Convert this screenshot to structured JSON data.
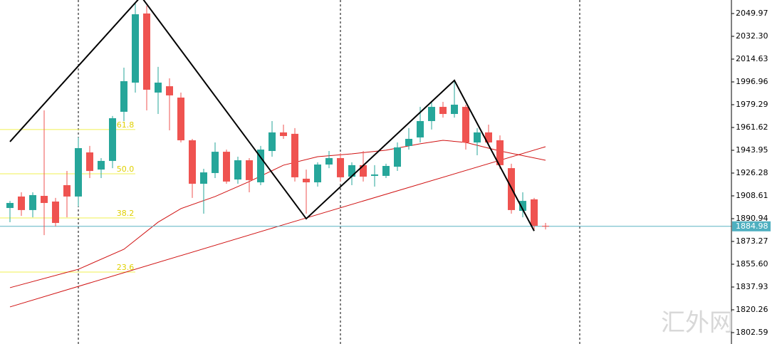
{
  "chart_data": {
    "type": "candlestick",
    "open": [
      1899.2,
      1908.1,
      1897.6,
      1908.6,
      1904.2,
      1916.9,
      1908.1,
      1942.3,
      1929.0,
      1935.7,
      1973.8,
      1996.4,
      2050.0,
      1988.7,
      1993.6,
      1984.8,
      1951.7,
      1918.0,
      1926.3,
      1942.8,
      1921.3,
      1936.2,
      1919.1,
      1943.4,
      1957.8,
      1956.7,
      1921.9,
      1919.1,
      1932.9,
      1937.9,
      1923.5,
      1932.4,
      1924.1,
      1924.1,
      1931.2,
      1947.3,
      1953.9,
      1966.6,
      1977.6,
      1972.1,
      1977.6,
      1950.0,
      1957.8,
      1951.7,
      1930.1,
      1897.0,
      1905.9,
      1885.4
    ],
    "high": [
      1904.7,
      1911.4,
      1911.4,
      1974.9,
      1907.0,
      1927.9,
      1953.9,
      1947.3,
      1937.9,
      1970.5,
      2008.0,
      2057.7,
      2056.0,
      2008.6,
      1999.7,
      1988.7,
      1952.8,
      1929.6,
      1950.0,
      1944.5,
      1939.0,
      1937.9,
      1947.3,
      1966.6,
      1963.8,
      1961.1,
      1929.0,
      1934.6,
      1943.4,
      1941.7,
      1934.6,
      1943.4,
      1932.4,
      1933.5,
      1950.0,
      1961.1,
      1977.6,
      1981.5,
      1981.5,
      1997.0,
      1979.3,
      1961.1,
      1963.8,
      1955.5,
      1933.5,
      1911.4,
      1907.0,
      1887.6
    ],
    "low": [
      1888.2,
      1893.1,
      1892.0,
      1878.2,
      1884.9,
      1892.0,
      1900.3,
      1922.4,
      1922.4,
      1930.1,
      1966.6,
      1988.7,
      1974.9,
      1972.1,
      1959.4,
      1950.0,
      1907.0,
      1894.8,
      1922.4,
      1918.0,
      1918.0,
      1911.4,
      1916.9,
      1939.0,
      1952.8,
      1919.7,
      1894.8,
      1915.8,
      1930.1,
      1919.7,
      1916.9,
      1919.7,
      1915.8,
      1922.4,
      1927.9,
      1944.5,
      1950.0,
      1960.0,
      1969.3,
      1969.3,
      1944.5,
      1940.1,
      1947.3,
      1929.6,
      1894.8,
      1892.0,
      1882.6,
      1882.6
    ],
    "close": [
      1903.1,
      1897.6,
      1909.2,
      1903.1,
      1887.6,
      1908.1,
      1945.6,
      1927.9,
      1935.7,
      1968.8,
      1997.5,
      2049.4,
      1990.9,
      1996.4,
      1986.5,
      1951.7,
      1918.0,
      1926.8,
      1942.8,
      1919.7,
      1936.2,
      1920.8,
      1944.5,
      1957.8,
      1955.0,
      1923.0,
      1919.1,
      1932.9,
      1937.9,
      1923.0,
      1932.4,
      1923.5,
      1925.2,
      1931.8,
      1946.2,
      1952.8,
      1966.6,
      1977.6,
      1972.1,
      1979.3,
      1950.0,
      1957.8,
      1950.0,
      1932.4,
      1897.6,
      1904.7,
      1885.4,
      1884.98
    ],
    "up_color": "#26a69a",
    "down_color": "#ef5350",
    "ylim": [
      1793.75,
      2060.46
    ],
    "yticks": [
      2049.97,
      {
        "value": 2032.3,
        "label": "2032.30"
      },
      2014.63,
      1996.96,
      1979.29,
      1961.62,
      1943.95,
      1926.28,
      1908.61,
      1890.94,
      1873.27,
      {
        "value": 1855.6,
        "label": "1855.60"
      },
      1837.93,
      1820.26,
      1802.59
    ],
    "last_price": 1884.98,
    "fib_levels": [
      {
        "label": "61.8",
        "price": 1960.0
      },
      {
        "label": "50.0",
        "price": 1925.7
      },
      {
        "label": "38.2",
        "price": 1891.5
      },
      {
        "label": "23.6",
        "price": 1849.5
      }
    ],
    "zigzag": {
      "x": [
        0,
        11.5,
        26,
        39,
        46
      ],
      "values": [
        1950.6,
        2063.2,
        1890.9,
        1998.1,
        1881.4
      ],
      "color": "#000000"
    },
    "moving_averages": [
      {
        "x": [
          0,
          6,
          10,
          13,
          15,
          18,
          21,
          24,
          27,
          30,
          33,
          36,
          38,
          40,
          43,
          47
        ],
        "values": [
          1837.4,
          1851.7,
          1867.2,
          1888.2,
          1898.7,
          1908.1,
          1919.7,
          1932.4,
          1939.0,
          1941.2,
          1944.0,
          1949.0,
          1951.7,
          1950.0,
          1943.4,
          1936.2
        ],
        "color": "#d01010"
      },
      {
        "x": [
          0,
          24,
          47
        ],
        "values": [
          1822.5,
          1886.2,
          1946.7
        ],
        "color": "#d01010"
      }
    ],
    "watermark": "汇外网"
  }
}
